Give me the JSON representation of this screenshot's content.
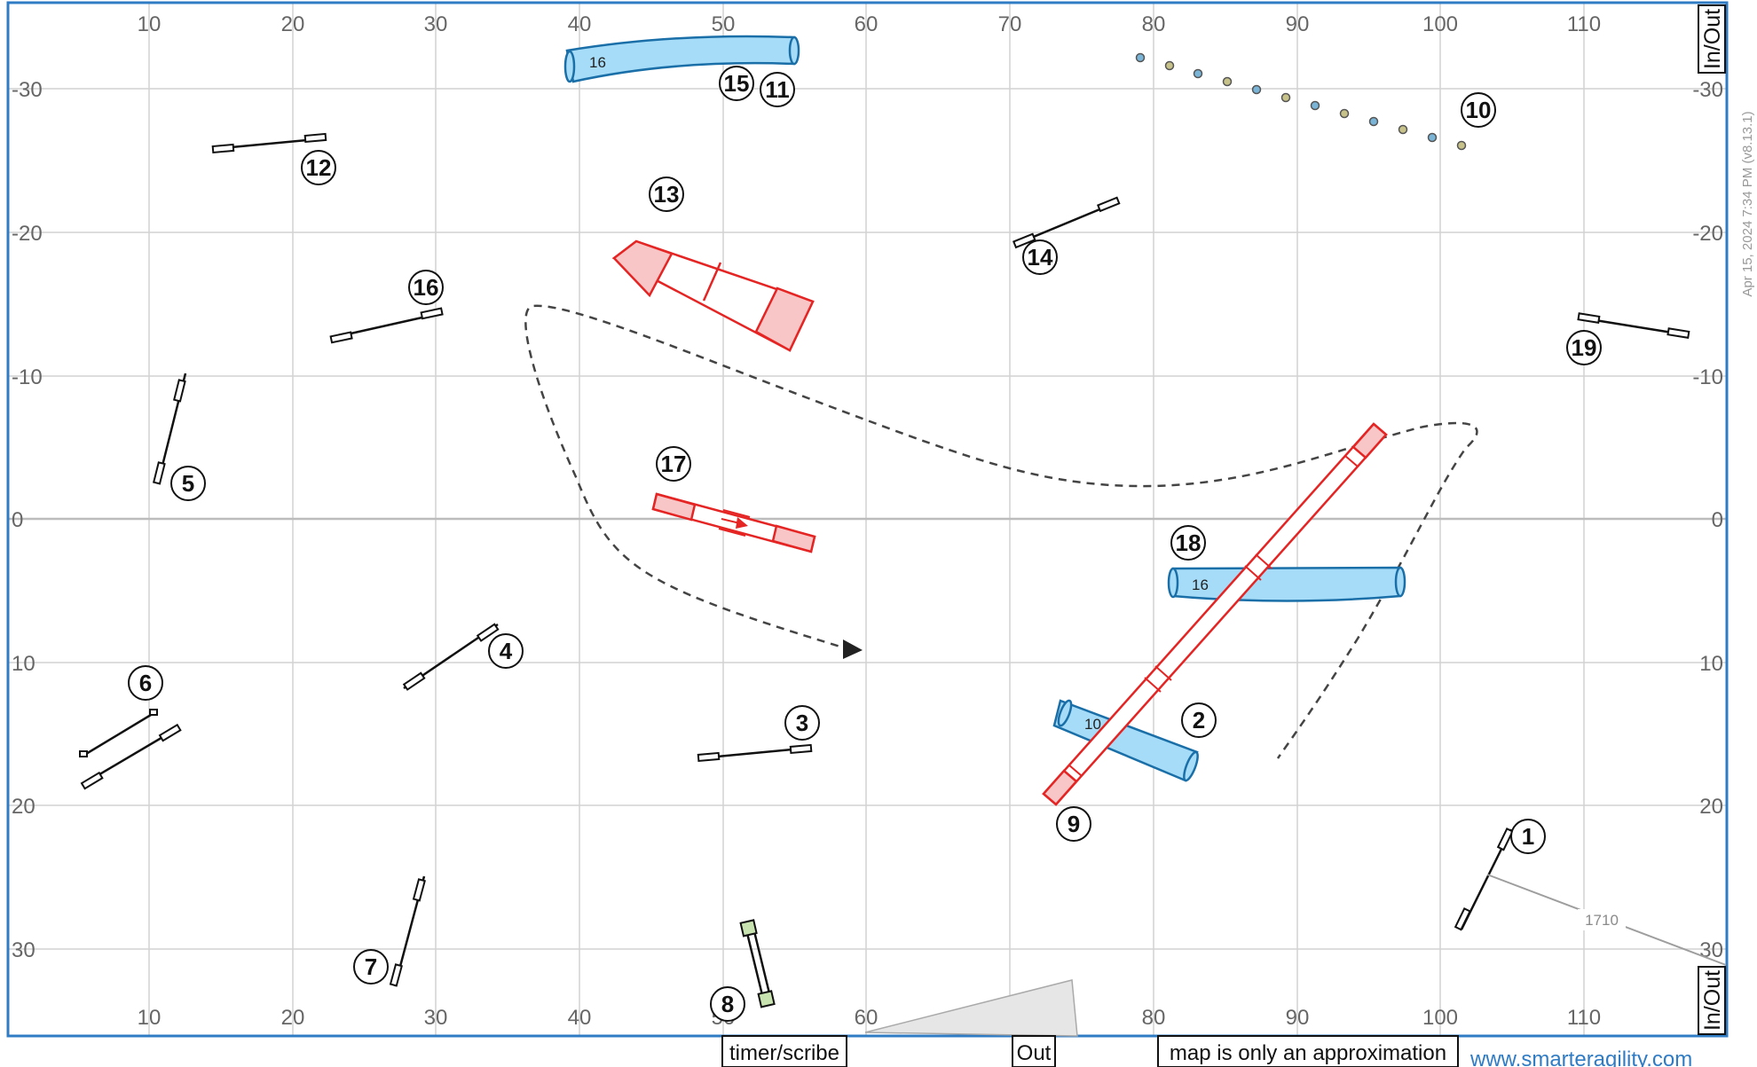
{
  "x_ticks": [
    "10",
    "20",
    "30",
    "40",
    "50",
    "60",
    "70",
    "80",
    "90",
    "100",
    "110"
  ],
  "y_ticks": [
    "-30",
    "-20",
    "-10",
    "0",
    "10",
    "20",
    "30"
  ],
  "side_labels": {
    "top": "In/Out",
    "bottom": "In/Out"
  },
  "timestamp": "Apr 15, 2024 7:34 PM  (v8.13.1)",
  "obstacle_numbers": {
    "n1": "1",
    "n2": "2",
    "n3": "3",
    "n4": "4",
    "n5": "5",
    "n6": "6",
    "n7": "7",
    "n8": "8",
    "n9": "9",
    "n10": "10",
    "n11": "11",
    "n12": "12",
    "n13": "13",
    "n14": "14",
    "n15": "15",
    "n16": "16",
    "n17": "17",
    "n18": "18",
    "n19": "19"
  },
  "tunnel_labels": {
    "top": "16",
    "middle": "16",
    "small": "10"
  },
  "distance_label": "1710",
  "footer": {
    "timer": "timer/scribe",
    "out": "Out",
    "note": "map is only an approximation",
    "website": "www.smarteragility.com"
  },
  "colors": {
    "frame": "#2f7bc4",
    "grid": "#d2d2d2",
    "tunnel_fill": "#a6dcf7",
    "tunnel_stroke": "#1a6fa8",
    "contact": "#e52424",
    "contact_fill": "#f8c6c6",
    "path": "#444444"
  }
}
